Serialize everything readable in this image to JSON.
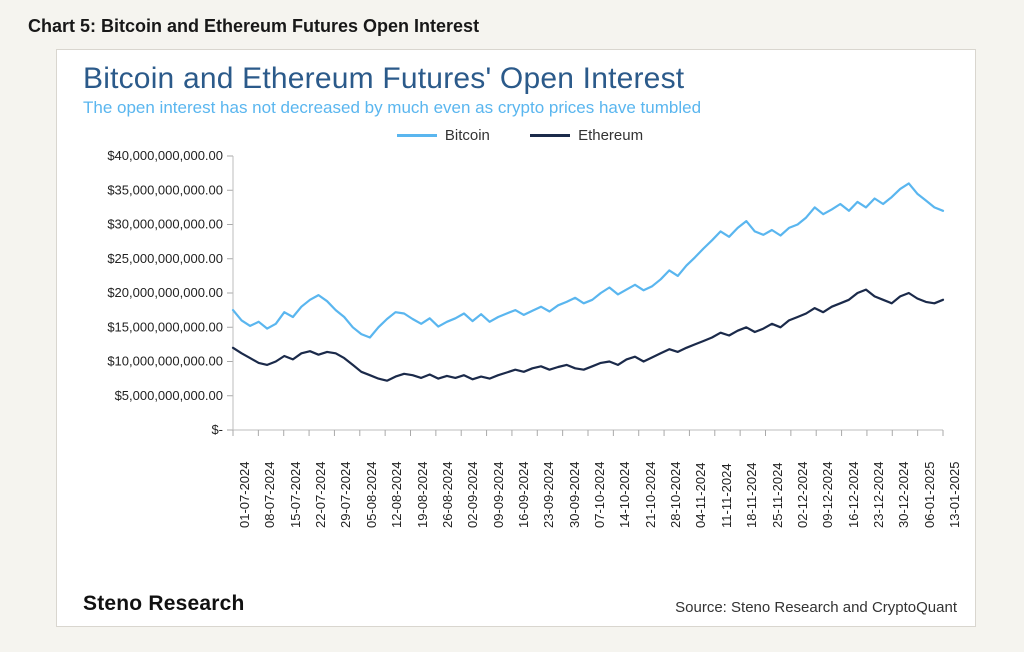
{
  "outer_title": "Chart 5: Bitcoin and Ethereum Futures Open Interest",
  "chart": {
    "type": "line",
    "title": "Bitcoin and Ethereum Futures' Open Interest",
    "subtitle": "The open interest has not decreased by much even as crypto prices have tumbled",
    "title_color": "#2b5a8a",
    "title_fontsize": 30,
    "subtitle_color": "#5ab6ef",
    "subtitle_fontsize": 17,
    "background_color": "#ffffff",
    "card_border_color": "#d9d6cf",
    "axis_color": "#bdbdbd",
    "tick_color": "#a9a9a9",
    "label_color": "#222222",
    "label_fontsize": 13,
    "ylim": [
      0,
      40000000000
    ],
    "y_ticks": [
      0,
      5000000000,
      10000000000,
      15000000000,
      20000000000,
      25000000000,
      30000000000,
      35000000000,
      40000000000
    ],
    "y_tick_labels": [
      "$-",
      "$5,000,000,000.00",
      "$10,000,000,000.00",
      "$15,000,000,000.00",
      "$20,000,000,000.00",
      "$25,000,000,000.00",
      "$30,000,000,000.00",
      "$35,000,000,000.00",
      "$40,000,000,000.00"
    ],
    "x_tick_labels": [
      "01-07-2024",
      "08-07-2024",
      "15-07-2024",
      "22-07-2024",
      "29-07-2024",
      "05-08-2024",
      "12-08-2024",
      "19-08-2024",
      "26-08-2024",
      "02-09-2024",
      "09-09-2024",
      "16-09-2024",
      "23-09-2024",
      "30-09-2024",
      "07-10-2024",
      "14-10-2024",
      "21-10-2024",
      "28-10-2024",
      "04-11-2024",
      "11-11-2024",
      "18-11-2024",
      "25-11-2024",
      "02-12-2024",
      "09-12-2024",
      "16-12-2024",
      "23-12-2024",
      "30-12-2024",
      "06-01-2025",
      "13-01-2025"
    ],
    "legend": {
      "position": "top-center",
      "items": [
        {
          "label": "Bitcoin",
          "color": "#5ab6ef"
        },
        {
          "label": "Ethereum",
          "color": "#1b2a4a"
        }
      ]
    },
    "line_width": 2.2,
    "series": {
      "bitcoin": {
        "color": "#5ab6ef",
        "values": [
          17.5,
          16.0,
          15.2,
          15.8,
          14.8,
          15.5,
          17.2,
          16.5,
          18.0,
          19.0,
          19.7,
          18.8,
          17.5,
          16.5,
          15.0,
          14.0,
          13.5,
          15.0,
          16.2,
          17.2,
          17.0,
          16.2,
          15.5,
          16.3,
          15.1,
          15.8,
          16.3,
          17.0,
          15.9,
          16.9,
          15.8,
          16.5,
          17.0,
          17.5,
          16.8,
          17.4,
          18.0,
          17.3,
          18.2,
          18.7,
          19.3,
          18.5,
          19.0,
          20.0,
          20.8,
          19.8,
          20.5,
          21.2,
          20.4,
          21.0,
          22.0,
          23.3,
          22.5,
          24.0,
          25.2,
          26.5,
          27.7,
          29.0,
          28.2,
          29.5,
          30.5,
          29.0,
          28.5,
          29.2,
          28.4,
          29.5,
          30.0,
          31.0,
          32.5,
          31.5,
          32.2,
          33.0,
          32.0,
          33.3,
          32.5,
          33.8,
          33.0,
          34.0,
          35.2,
          36.0,
          34.5,
          33.5,
          32.5,
          32.0
        ]
      },
      "ethereum": {
        "color": "#1b2a4a",
        "values": [
          12.0,
          11.2,
          10.5,
          9.8,
          9.5,
          10.0,
          10.8,
          10.3,
          11.2,
          11.5,
          11.0,
          11.4,
          11.2,
          10.5,
          9.5,
          8.5,
          8.0,
          7.5,
          7.2,
          7.8,
          8.2,
          8.0,
          7.6,
          8.1,
          7.5,
          7.9,
          7.6,
          8.0,
          7.4,
          7.8,
          7.5,
          8.0,
          8.4,
          8.8,
          8.5,
          9.0,
          9.3,
          8.8,
          9.2,
          9.5,
          9.0,
          8.8,
          9.3,
          9.8,
          10.0,
          9.5,
          10.3,
          10.7,
          10.0,
          10.6,
          11.2,
          11.8,
          11.4,
          12.0,
          12.5,
          13.0,
          13.5,
          14.2,
          13.8,
          14.5,
          15.0,
          14.3,
          14.8,
          15.5,
          15.0,
          16.0,
          16.5,
          17.0,
          17.8,
          17.2,
          18.0,
          18.5,
          19.0,
          20.0,
          20.5,
          19.5,
          19.0,
          18.5,
          19.5,
          20.0,
          19.2,
          18.7,
          18.5,
          19.0
        ]
      }
    },
    "brand": "Steno Research",
    "source": "Source: Steno Research and CryptoQuant"
  }
}
